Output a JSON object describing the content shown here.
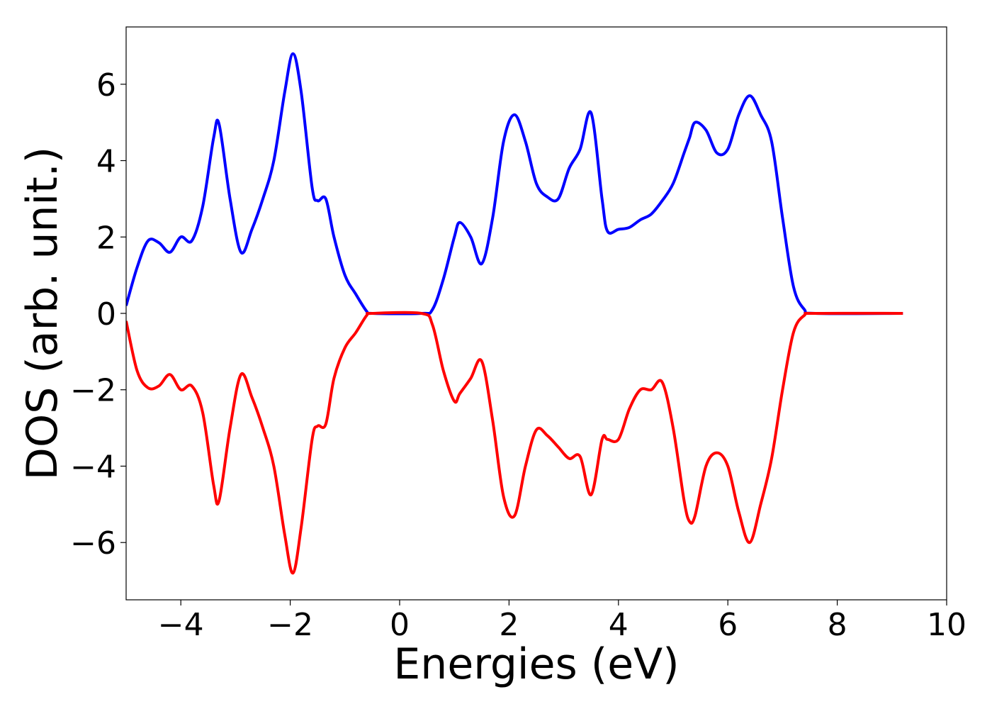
{
  "chart_data": {
    "type": "line",
    "xlabel": "Energies (eV)",
    "ylabel": "DOS (arb. unit.)",
    "xlim": [
      -5,
      10
    ],
    "xticks": [
      {
        "value": -4,
        "label": "−4"
      },
      {
        "value": -2,
        "label": "−2"
      },
      0,
      2,
      4,
      6,
      8,
      10
    ],
    "ylim": [
      -7.5,
      7.5
    ],
    "yticks": [
      {
        "value": -6,
        "label": "−6"
      },
      {
        "value": -4,
        "label": "−4"
      },
      {
        "value": -2,
        "label": "−2"
      },
      0,
      2,
      4,
      6
    ],
    "x": [
      -5,
      -4.8,
      -4.6,
      -4.4,
      -4.2,
      -4,
      -3.8,
      -3.6,
      -3.4,
      -3.3,
      -3.1,
      -2.9,
      -2.7,
      -2.5,
      -2.3,
      -2.1,
      -1.95,
      -1.8,
      -1.6,
      -1.5,
      -1.35,
      -1.2,
      -1,
      -0.8,
      -0.6,
      -0.5,
      0.4,
      0.6,
      0.8,
      1,
      1.1,
      1.3,
      1.5,
      1.7,
      1.9,
      2.1,
      2.3,
      2.5,
      2.7,
      2.9,
      3.1,
      3.3,
      3.5,
      3.7,
      3.8,
      4,
      4.2,
      4.4,
      4.6,
      4.8,
      5,
      5.2,
      5.3,
      5.4,
      5.6,
      5.8,
      6,
      6.2,
      6.4,
      6.6,
      6.8,
      7,
      7.2,
      7.4,
      7.6,
      9.2
    ],
    "series": [
      {
        "color": "#0000ff",
        "values": [
          0.2,
          1.2,
          1.9,
          1.85,
          1.6,
          2.0,
          1.9,
          2.8,
          4.6,
          4.95,
          3.0,
          1.6,
          2.2,
          3.0,
          4.0,
          5.8,
          6.8,
          5.8,
          3.3,
          2.95,
          3.0,
          2.0,
          1.0,
          0.5,
          0.05,
          0,
          0,
          0.1,
          0.9,
          2.0,
          2.38,
          2.0,
          1.3,
          2.5,
          4.5,
          5.2,
          4.5,
          3.4,
          3.05,
          3.0,
          3.8,
          4.3,
          5.25,
          3.0,
          2.15,
          2.2,
          2.25,
          2.45,
          2.6,
          2.95,
          3.4,
          4.2,
          4.6,
          5.0,
          4.8,
          4.2,
          4.3,
          5.2,
          5.7,
          5.2,
          4.5,
          2.5,
          0.7,
          0.1,
          0,
          0
        ]
      },
      {
        "color": "#ff0000",
        "values": [
          -0.2,
          -1.5,
          -1.95,
          -1.9,
          -1.6,
          -2.0,
          -1.9,
          -2.6,
          -4.5,
          -4.9,
          -3.0,
          -1.6,
          -2.2,
          -3.0,
          -4.0,
          -5.8,
          -6.8,
          -5.6,
          -3.3,
          -2.95,
          -2.9,
          -1.7,
          -0.9,
          -0.5,
          -0.05,
          0,
          0,
          -0.3,
          -1.5,
          -2.3,
          -2.1,
          -1.7,
          -1.25,
          -2.8,
          -4.8,
          -5.3,
          -4.0,
          -3.05,
          -3.2,
          -3.5,
          -3.8,
          -3.75,
          -4.75,
          -3.3,
          -3.3,
          -3.3,
          -2.5,
          -2.0,
          -2.0,
          -1.8,
          -3.0,
          -4.9,
          -5.45,
          -5.3,
          -4.0,
          -3.65,
          -4.0,
          -5.2,
          -6.0,
          -5.0,
          -3.8,
          -2.0,
          -0.5,
          -0.05,
          0,
          0
        ]
      }
    ]
  }
}
